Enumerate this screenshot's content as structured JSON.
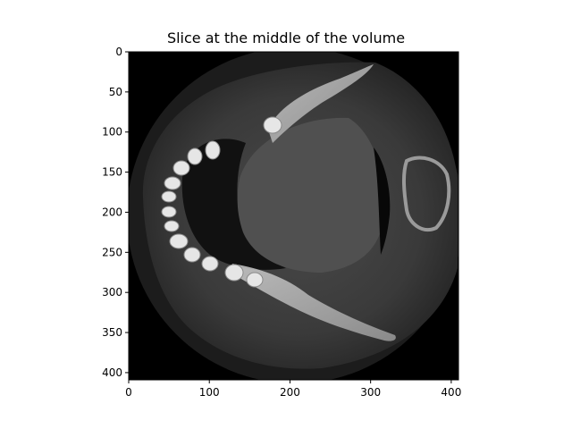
{
  "title": "Slice at the middle of the volume",
  "image": {
    "subject": "axial CT slice of jaw with teeth",
    "background": "#000000",
    "colormap": "gray"
  },
  "axes": {
    "xlim": [
      0,
      409
    ],
    "ylim": [
      409,
      0
    ],
    "xticks": [
      0,
      100,
      200,
      300,
      400
    ],
    "yticks": [
      0,
      50,
      100,
      150,
      200,
      250,
      300,
      350,
      400
    ]
  }
}
